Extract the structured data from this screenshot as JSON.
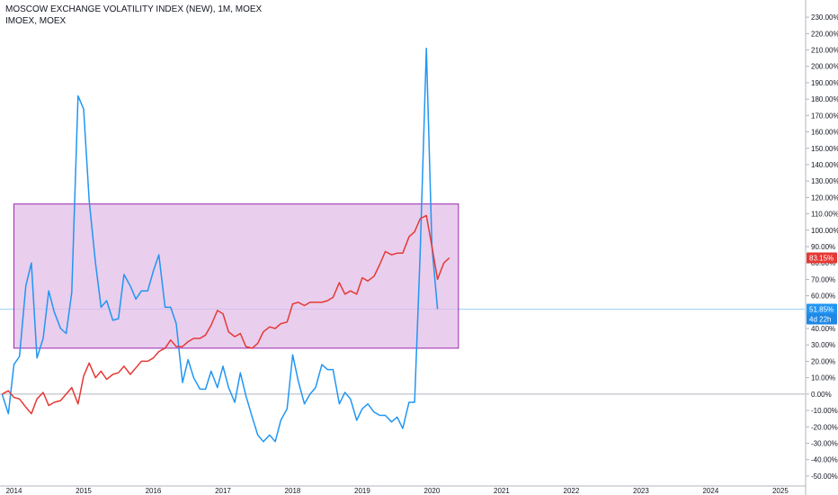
{
  "legend": {
    "main": "MOSCOW EXCHANGE VOLATILITY INDEX (NEW), 1M, MOEX",
    "compare": "IMOEX, MOEX"
  },
  "badges": {
    "red_value": "83.15%",
    "blue_value": "51.85%",
    "countdown": "4d 22h"
  },
  "colors": {
    "blue_series": "#2196f3",
    "red_series": "#e53935",
    "box_fill": "#e1bee7",
    "box_stroke": "#9c27b0",
    "grid": "#e0e3eb",
    "zero_line": "#b2b5be",
    "countdown_bg": "#1e88e5"
  },
  "chart_data": {
    "type": "line",
    "y_unit": "%",
    "ylim": [
      -55,
      235
    ],
    "y_ticks": [
      -50,
      -40,
      -30,
      -20,
      -10,
      0,
      10,
      20,
      30,
      40,
      50,
      60,
      70,
      80,
      90,
      100,
      110,
      120,
      130,
      140,
      150,
      160,
      170,
      180,
      190,
      200,
      210,
      220,
      230
    ],
    "x_ticks": [
      "2014",
      "2015",
      "2016",
      "2017",
      "2018",
      "2019",
      "2020",
      "2021",
      "2022",
      "2023",
      "2024",
      "2025"
    ],
    "xlim": [
      2013.8,
      2025.35
    ],
    "grid": false,
    "zero_line": true,
    "series": [
      {
        "color": "#2196f3",
        "points": [
          [
            2013.83,
            0
          ],
          [
            2013.92,
            -12
          ],
          [
            2014.0,
            18
          ],
          [
            2014.08,
            23
          ],
          [
            2014.17,
            66
          ],
          [
            2014.25,
            80
          ],
          [
            2014.33,
            22
          ],
          [
            2014.42,
            34
          ],
          [
            2014.5,
            63
          ],
          [
            2014.58,
            50
          ],
          [
            2014.67,
            40
          ],
          [
            2014.75,
            37
          ],
          [
            2014.83,
            62
          ],
          [
            2014.92,
            182
          ],
          [
            2015.0,
            174
          ],
          [
            2015.08,
            118
          ],
          [
            2015.17,
            80
          ],
          [
            2015.25,
            53
          ],
          [
            2015.33,
            57
          ],
          [
            2015.42,
            45
          ],
          [
            2015.5,
            46
          ],
          [
            2015.58,
            73
          ],
          [
            2015.67,
            66
          ],
          [
            2015.75,
            58
          ],
          [
            2015.83,
            63
          ],
          [
            2015.92,
            63
          ],
          [
            2016.0,
            75
          ],
          [
            2016.08,
            85
          ],
          [
            2016.17,
            53
          ],
          [
            2016.25,
            53
          ],
          [
            2016.33,
            43
          ],
          [
            2016.42,
            7
          ],
          [
            2016.5,
            21
          ],
          [
            2016.58,
            10
          ],
          [
            2016.67,
            3
          ],
          [
            2016.75,
            3
          ],
          [
            2016.83,
            14
          ],
          [
            2016.92,
            4
          ],
          [
            2017.0,
            17
          ],
          [
            2017.08,
            4
          ],
          [
            2017.17,
            -5
          ],
          [
            2017.25,
            13
          ],
          [
            2017.33,
            -1
          ],
          [
            2017.42,
            -14
          ],
          [
            2017.5,
            -25
          ],
          [
            2017.58,
            -29
          ],
          [
            2017.67,
            -25
          ],
          [
            2017.75,
            -29
          ],
          [
            2017.83,
            -16
          ],
          [
            2017.92,
            -9
          ],
          [
            2018.0,
            24
          ],
          [
            2018.08,
            8
          ],
          [
            2018.17,
            -6
          ],
          [
            2018.25,
            0
          ],
          [
            2018.33,
            4
          ],
          [
            2018.42,
            18
          ],
          [
            2018.5,
            15
          ],
          [
            2018.58,
            15
          ],
          [
            2018.67,
            -6
          ],
          [
            2018.75,
            1
          ],
          [
            2018.83,
            -3
          ],
          [
            2018.92,
            -16
          ],
          [
            2019.0,
            -9
          ],
          [
            2019.08,
            -6
          ],
          [
            2019.17,
            -11
          ],
          [
            2019.25,
            -13
          ],
          [
            2019.33,
            -13
          ],
          [
            2019.42,
            -17
          ],
          [
            2019.5,
            -14
          ],
          [
            2019.58,
            -21
          ],
          [
            2019.67,
            -5
          ],
          [
            2019.75,
            -5
          ],
          [
            2019.83,
            86
          ],
          [
            2019.92,
            211
          ],
          [
            2020.0,
            90
          ],
          [
            2020.08,
            51.85
          ]
        ]
      },
      {
        "color": "#e53935",
        "points": [
          [
            2013.83,
            0
          ],
          [
            2013.92,
            2
          ],
          [
            2014.0,
            -2
          ],
          [
            2014.08,
            -3
          ],
          [
            2014.17,
            -8
          ],
          [
            2014.25,
            -12
          ],
          [
            2014.33,
            -3
          ],
          [
            2014.42,
            1
          ],
          [
            2014.5,
            -7
          ],
          [
            2014.58,
            -5
          ],
          [
            2014.67,
            -4
          ],
          [
            2014.75,
            0
          ],
          [
            2014.83,
            4
          ],
          [
            2014.92,
            -6
          ],
          [
            2015.0,
            11
          ],
          [
            2015.08,
            19
          ],
          [
            2015.17,
            10
          ],
          [
            2015.25,
            14
          ],
          [
            2015.33,
            9
          ],
          [
            2015.42,
            12
          ],
          [
            2015.5,
            13
          ],
          [
            2015.58,
            17
          ],
          [
            2015.67,
            12
          ],
          [
            2015.75,
            16
          ],
          [
            2015.83,
            20
          ],
          [
            2015.92,
            20
          ],
          [
            2016.0,
            22
          ],
          [
            2016.08,
            26
          ],
          [
            2016.17,
            28
          ],
          [
            2016.25,
            33
          ],
          [
            2016.33,
            29
          ],
          [
            2016.42,
            29
          ],
          [
            2016.5,
            32
          ],
          [
            2016.58,
            34
          ],
          [
            2016.67,
            34
          ],
          [
            2016.75,
            36
          ],
          [
            2016.83,
            42
          ],
          [
            2016.92,
            51
          ],
          [
            2017.0,
            49
          ],
          [
            2017.08,
            38
          ],
          [
            2017.17,
            35
          ],
          [
            2017.25,
            37
          ],
          [
            2017.33,
            29
          ],
          [
            2017.42,
            28
          ],
          [
            2017.5,
            31
          ],
          [
            2017.58,
            38
          ],
          [
            2017.67,
            41
          ],
          [
            2017.75,
            40
          ],
          [
            2017.83,
            43
          ],
          [
            2017.92,
            44
          ],
          [
            2018.0,
            55
          ],
          [
            2018.08,
            56
          ],
          [
            2018.17,
            54
          ],
          [
            2018.25,
            56
          ],
          [
            2018.33,
            56
          ],
          [
            2018.42,
            56
          ],
          [
            2018.5,
            57
          ],
          [
            2018.58,
            59
          ],
          [
            2018.67,
            68
          ],
          [
            2018.75,
            61
          ],
          [
            2018.83,
            63
          ],
          [
            2018.92,
            61
          ],
          [
            2019.0,
            71
          ],
          [
            2019.08,
            69
          ],
          [
            2019.17,
            72
          ],
          [
            2019.25,
            79
          ],
          [
            2019.33,
            87
          ],
          [
            2019.42,
            85
          ],
          [
            2019.5,
            86
          ],
          [
            2019.58,
            86
          ],
          [
            2019.67,
            96
          ],
          [
            2019.75,
            99
          ],
          [
            2019.83,
            107
          ],
          [
            2019.92,
            109
          ],
          [
            2020.0,
            90
          ],
          [
            2020.08,
            70
          ],
          [
            2020.17,
            80
          ],
          [
            2020.25,
            83.15
          ]
        ]
      }
    ],
    "shaded_box": {
      "x0": 2014.0,
      "x1": 2020.38,
      "y0": 28,
      "y1": 116
    },
    "last_value_line": 51.85
  }
}
